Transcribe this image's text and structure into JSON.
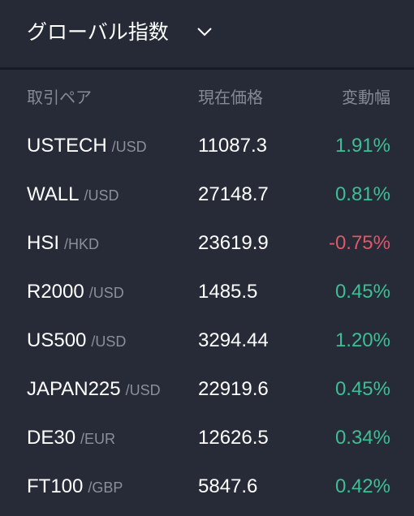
{
  "header": {
    "title": "グローバル指数"
  },
  "table": {
    "columns": [
      "取引ペア",
      "現在価格",
      "変動幅"
    ],
    "colors": {
      "up": "#3dbf95",
      "down": "#e0566a"
    },
    "rows": [
      {
        "symbol": "USTECH",
        "quote": "/USD",
        "price": "11087.3",
        "change": "1.91%"
      },
      {
        "symbol": "WALL",
        "quote": "/USD",
        "price": "27148.7",
        "change": "0.81%"
      },
      {
        "symbol": "HSI",
        "quote": "/HKD",
        "price": "23619.9",
        "change": "-0.75%"
      },
      {
        "symbol": "R2000",
        "quote": "/USD",
        "price": "1485.5",
        "change": "0.45%"
      },
      {
        "symbol": "US500",
        "quote": "/USD",
        "price": "3294.44",
        "change": "1.20%"
      },
      {
        "symbol": "JAPAN225",
        "quote": "/USD",
        "price": "22919.6",
        "change": "0.45%"
      },
      {
        "symbol": "DE30",
        "quote": "/EUR",
        "price": "12626.5",
        "change": "0.34%"
      },
      {
        "symbol": "FT100",
        "quote": "/GBP",
        "price": "5847.6",
        "change": "0.42%"
      }
    ]
  }
}
